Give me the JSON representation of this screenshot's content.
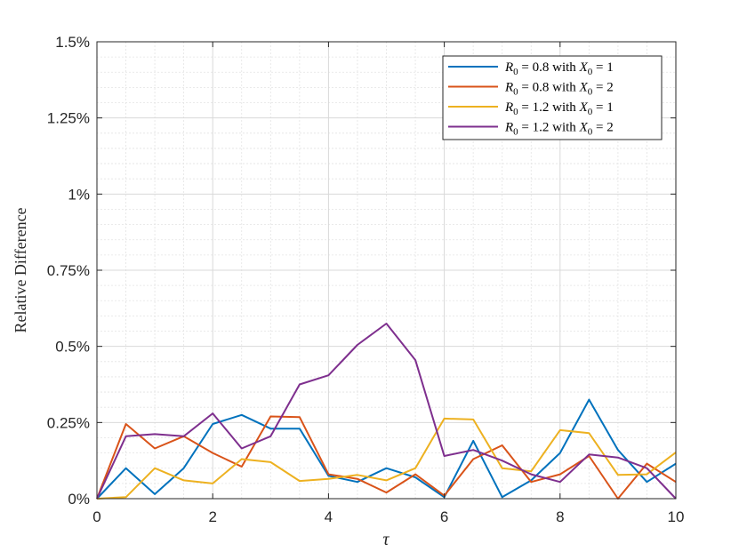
{
  "chart_data": {
    "type": "line",
    "title": "",
    "xlabel": "τ",
    "ylabel": "Relative Difference",
    "xlim": [
      0,
      10
    ],
    "ylim": [
      0,
      1.5
    ],
    "xticks": [
      0,
      2,
      4,
      6,
      8,
      10
    ],
    "xtick_labels": [
      "0",
      "2",
      "4",
      "6",
      "8",
      "10"
    ],
    "yticks": [
      0,
      0.25,
      0.5,
      0.75,
      1,
      1.25,
      1.5
    ],
    "ytick_labels": [
      "0%",
      "0.25%",
      "0.5%",
      "0.75%",
      "1%",
      "1.25%",
      "1.5%"
    ],
    "grid": true,
    "minor_grid": true,
    "legend_position": "top-right",
    "x": [
      0,
      0.5,
      1,
      1.5,
      2,
      2.5,
      3,
      3.5,
      4,
      4.5,
      5,
      5.5,
      6,
      6.5,
      7,
      7.5,
      8,
      8.5,
      9,
      9.5,
      10
    ],
    "series": [
      {
        "name": "R0 = 0.8 with X0 = 1",
        "legend": {
          "a": "R",
          "b": "= 0.8 with",
          "c": "X",
          "d": "= 1"
        },
        "color": "#0072BD",
        "values": [
          0.0,
          0.1,
          0.015,
          0.1,
          0.245,
          0.275,
          0.23,
          0.23,
          0.075,
          0.055,
          0.1,
          0.07,
          0.005,
          0.19,
          0.005,
          0.06,
          0.15,
          0.325,
          0.16,
          0.055,
          0.115
        ]
      },
      {
        "name": "R0 = 0.8 with X0 = 2",
        "legend": {
          "a": "R",
          "b": "= 0.8 with",
          "c": "X",
          "d": "= 2"
        },
        "color": "#D95319",
        "values": [
          0.0,
          0.245,
          0.165,
          0.205,
          0.15,
          0.105,
          0.27,
          0.268,
          0.08,
          0.065,
          0.02,
          0.08,
          0.01,
          0.13,
          0.175,
          0.055,
          0.08,
          0.14,
          0.0,
          0.115,
          0.055
        ]
      },
      {
        "name": "R0 = 1.2 with X0 = 1",
        "legend": {
          "a": "R",
          "b": "= 1.2 with",
          "c": "X",
          "d": "= 1"
        },
        "color": "#EDB120",
        "values": [
          0.0,
          0.005,
          0.1,
          0.06,
          0.05,
          0.13,
          0.12,
          0.058,
          0.065,
          0.078,
          0.06,
          0.1,
          0.263,
          0.26,
          0.1,
          0.09,
          0.225,
          0.215,
          0.078,
          0.08,
          0.152
        ]
      },
      {
        "name": "R0 = 1.2 with X0 = 2",
        "legend": {
          "a": "R",
          "b": "= 1.2 with",
          "c": "X",
          "d": "= 2"
        },
        "color": "#7E2F8E",
        "values": [
          0.0,
          0.205,
          0.212,
          0.205,
          0.28,
          0.165,
          0.205,
          0.375,
          0.405,
          0.505,
          0.575,
          0.455,
          0.14,
          0.16,
          0.125,
          0.08,
          0.055,
          0.145,
          0.135,
          0.1,
          0.0
        ]
      }
    ]
  }
}
